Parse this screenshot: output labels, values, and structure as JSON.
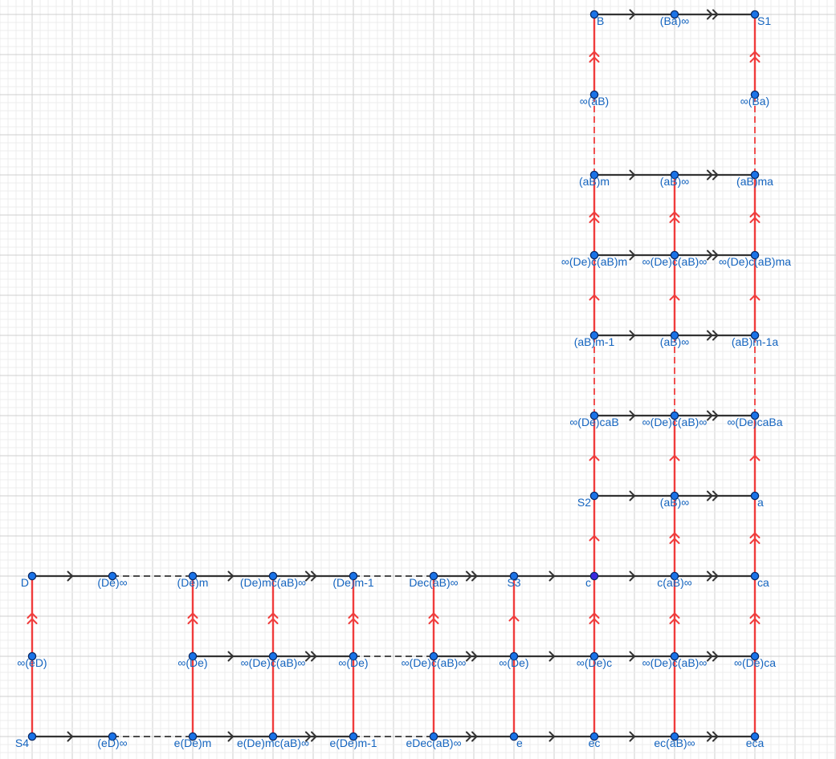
{
  "colors": {
    "background": "#ffffff",
    "grid_minor": "#ececec",
    "grid_major": "#cfcfcf",
    "edge_horizontal": "#333333",
    "edge_vertical": "#f03c3c",
    "point_fill": "#1a73e8",
    "point_stroke": "#0a2a66",
    "point_special_fill": "#3a2be0",
    "label": "#1565c0"
  },
  "points": [
    {
      "id": "B",
      "label": "B",
      "x": 14,
      "y": 18,
      "anchor": "start"
    },
    {
      "id": "Ba_inf",
      "label": "(Ba)∞",
      "x": 16,
      "y": 18,
      "anchor": "middle"
    },
    {
      "id": "S1",
      "label": "S1",
      "x": 18,
      "y": 18,
      "anchor": "start"
    },
    {
      "id": "inf_aB",
      "label": "∞(aB)",
      "x": 14,
      "y": 16,
      "anchor": "middle"
    },
    {
      "id": "inf_Ba",
      "label": "∞(Ba)",
      "x": 18,
      "y": 16,
      "anchor": "middle"
    },
    {
      "id": "aBm",
      "label": "(aB)m",
      "x": 14,
      "y": 14,
      "anchor": "middle"
    },
    {
      "id": "aBinf_1",
      "label": "(aB)∞",
      "x": 16,
      "y": 14,
      "anchor": "middle"
    },
    {
      "id": "aBma",
      "label": "(aB)ma",
      "x": 18,
      "y": 14,
      "anchor": "middle"
    },
    {
      "id": "r12a",
      "label": "∞(De)c(aB)m",
      "x": 14,
      "y": 12,
      "anchor": "middle"
    },
    {
      "id": "r12b",
      "label": "∞(De)c(aB)∞",
      "x": 16,
      "y": 12,
      "anchor": "middle"
    },
    {
      "id": "r12c",
      "label": "∞(De)c(aB)ma",
      "x": 18,
      "y": 12,
      "anchor": "middle"
    },
    {
      "id": "aBm1",
      "label": "(aB)m-1",
      "x": 14,
      "y": 10,
      "anchor": "middle"
    },
    {
      "id": "aBinf_2",
      "label": "(aB)∞",
      "x": 16,
      "y": 10,
      "anchor": "middle"
    },
    {
      "id": "aBm1a",
      "label": "(aB)m-1a",
      "x": 18,
      "y": 10,
      "anchor": "middle"
    },
    {
      "id": "r8a",
      "label": "∞(De)caB",
      "x": 14,
      "y": 8,
      "anchor": "middle"
    },
    {
      "id": "r8b",
      "label": "∞(De)c(aB)∞",
      "x": 16,
      "y": 8,
      "anchor": "middle"
    },
    {
      "id": "r8c",
      "label": "∞(De)caBa",
      "x": 18,
      "y": 8,
      "anchor": "middle"
    },
    {
      "id": "S2",
      "label": "S2",
      "x": 14,
      "y": 6,
      "anchor": "end"
    },
    {
      "id": "aBinf_3",
      "label": "(aB)∞",
      "x": 16,
      "y": 6,
      "anchor": "middle"
    },
    {
      "id": "a",
      "label": "a",
      "x": 18,
      "y": 6,
      "anchor": "start"
    },
    {
      "id": "D",
      "label": "D",
      "x": 0,
      "y": 4,
      "anchor": "end"
    },
    {
      "id": "De_inf",
      "label": "(De)∞",
      "x": 2,
      "y": 4,
      "anchor": "middle"
    },
    {
      "id": "Dem",
      "label": "(De)m",
      "x": 4,
      "y": 4,
      "anchor": "middle"
    },
    {
      "id": "Demc",
      "label": "(De)mc(aB)∞",
      "x": 6,
      "y": 4,
      "anchor": "middle"
    },
    {
      "id": "Dem1",
      "label": "(De)m-1",
      "x": 8,
      "y": 4,
      "anchor": "middle"
    },
    {
      "id": "Dec",
      "label": "Dec(aB)∞",
      "x": 10,
      "y": 4,
      "anchor": "middle"
    },
    {
      "id": "S3",
      "label": "S3",
      "x": 12,
      "y": 4,
      "anchor": "middle"
    },
    {
      "id": "c",
      "label": "c",
      "x": 14,
      "y": 4,
      "anchor": "end",
      "special": true
    },
    {
      "id": "caBinf",
      "label": "c(aB)∞",
      "x": 16,
      "y": 4,
      "anchor": "middle"
    },
    {
      "id": "ca",
      "label": "ca",
      "x": 18,
      "y": 4,
      "anchor": "start"
    },
    {
      "id": "inf_eD",
      "label": "∞(eD)",
      "x": 0,
      "y": 2,
      "anchor": "middle"
    },
    {
      "id": "inf_De_1",
      "label": "∞(De)",
      "x": 4,
      "y": 2,
      "anchor": "middle"
    },
    {
      "id": "r2a",
      "label": "∞(De)c(aB)∞",
      "x": 6,
      "y": 2,
      "anchor": "middle"
    },
    {
      "id": "inf_De_2",
      "label": "∞(De)",
      "x": 8,
      "y": 2,
      "anchor": "middle"
    },
    {
      "id": "r2b",
      "label": "∞(De)c(aB)∞",
      "x": 10,
      "y": 2,
      "anchor": "middle"
    },
    {
      "id": "inf_De_3",
      "label": "∞(De)",
      "x": 12,
      "y": 2,
      "anchor": "middle"
    },
    {
      "id": "inf_Dec",
      "label": "∞(De)c",
      "x": 14,
      "y": 2,
      "anchor": "middle"
    },
    {
      "id": "r2c",
      "label": "∞(De)c(aB)∞",
      "x": 16,
      "y": 2,
      "anchor": "middle"
    },
    {
      "id": "inf_Deca",
      "label": "∞(De)ca",
      "x": 18,
      "y": 2,
      "anchor": "middle"
    },
    {
      "id": "S4",
      "label": "S4",
      "x": 0,
      "y": 0,
      "anchor": "end"
    },
    {
      "id": "eD_inf",
      "label": "(eD)∞",
      "x": 2,
      "y": 0,
      "anchor": "middle"
    },
    {
      "id": "eDem",
      "label": "e(De)m",
      "x": 4,
      "y": 0,
      "anchor": "middle"
    },
    {
      "id": "eDemc",
      "label": "e(De)mc(aB)∞",
      "x": 6,
      "y": 0,
      "anchor": "middle"
    },
    {
      "id": "eDem1",
      "label": "e(De)m-1",
      "x": 8,
      "y": 0,
      "anchor": "middle"
    },
    {
      "id": "eDec",
      "label": "eDec(aB)∞",
      "x": 10,
      "y": 0,
      "anchor": "middle"
    },
    {
      "id": "e",
      "label": "e",
      "x": 12,
      "y": 0,
      "anchor": "start"
    },
    {
      "id": "ec",
      "label": "ec",
      "x": 14,
      "y": 0,
      "anchor": "middle"
    },
    {
      "id": "ecaBinf",
      "label": "ec(aB)∞",
      "x": 16,
      "y": 0,
      "anchor": "middle"
    },
    {
      "id": "eca",
      "label": "eca",
      "x": 18,
      "y": 0,
      "anchor": "middle"
    }
  ],
  "edges": [
    {
      "from": "B",
      "to": "Ba_inf",
      "arrows": 1
    },
    {
      "from": "Ba_inf",
      "to": "S1",
      "arrows": 2
    },
    {
      "from": "aBm",
      "to": "aBinf_1",
      "arrows": 1
    },
    {
      "from": "aBinf_1",
      "to": "aBma",
      "arrows": 2
    },
    {
      "from": "r12a",
      "to": "r12b",
      "arrows": 1
    },
    {
      "from": "r12b",
      "to": "r12c",
      "arrows": 2
    },
    {
      "from": "aBm1",
      "to": "aBinf_2",
      "arrows": 1
    },
    {
      "from": "aBinf_2",
      "to": "aBm1a",
      "arrows": 2
    },
    {
      "from": "r8a",
      "to": "r8b",
      "arrows": 1
    },
    {
      "from": "r8b",
      "to": "r8c",
      "arrows": 2
    },
    {
      "from": "S2",
      "to": "aBinf_3",
      "arrows": 1
    },
    {
      "from": "aBinf_3",
      "to": "a",
      "arrows": 2
    },
    {
      "from": "D",
      "to": "De_inf",
      "arrows": 1
    },
    {
      "from": "De_inf",
      "to": "Dem",
      "dashed": true
    },
    {
      "from": "Dem",
      "to": "Demc",
      "arrows": 1
    },
    {
      "from": "Demc",
      "to": "Dem1",
      "arrows": 2
    },
    {
      "from": "Dem1",
      "to": "Dec",
      "dashed": true
    },
    {
      "from": "Dec",
      "to": "S3",
      "arrows": 2
    },
    {
      "from": "S3",
      "to": "c",
      "arrows": 1
    },
    {
      "from": "c",
      "to": "caBinf",
      "arrows": 1
    },
    {
      "from": "caBinf",
      "to": "ca",
      "arrows": 2
    },
    {
      "from": "inf_De_1",
      "to": "r2a",
      "arrows": 1
    },
    {
      "from": "r2a",
      "to": "inf_De_2",
      "arrows": 2
    },
    {
      "from": "inf_De_2",
      "to": "r2b",
      "dashed": true
    },
    {
      "from": "r2b",
      "to": "inf_De_3",
      "arrows": 2
    },
    {
      "from": "inf_De_3",
      "to": "inf_Dec",
      "arrows": 1
    },
    {
      "from": "inf_Dec",
      "to": "r2c",
      "arrows": 1
    },
    {
      "from": "r2c",
      "to": "inf_Deca",
      "arrows": 2
    },
    {
      "from": "S4",
      "to": "eD_inf",
      "arrows": 1
    },
    {
      "from": "eD_inf",
      "to": "eDem",
      "dashed": true
    },
    {
      "from": "eDem",
      "to": "eDemc",
      "arrows": 1
    },
    {
      "from": "eDemc",
      "to": "eDem1",
      "arrows": 2
    },
    {
      "from": "eDem1",
      "to": "eDec",
      "dashed": true
    },
    {
      "from": "eDec",
      "to": "e",
      "arrows": 2
    },
    {
      "from": "e",
      "to": "ec",
      "arrows": 1
    },
    {
      "from": "ec",
      "to": "ecaBinf",
      "arrows": 1
    },
    {
      "from": "ecaBinf",
      "to": "eca",
      "arrows": 2
    },
    {
      "from": "S4",
      "to": "inf_eD",
      "arrows": 0,
      "vertical": true
    },
    {
      "from": "inf_eD",
      "to": "D",
      "arrows": 2,
      "vertical": true
    },
    {
      "from": "eDem",
      "to": "inf_De_1",
      "arrows": 0,
      "vertical": true
    },
    {
      "from": "inf_De_1",
      "to": "Dem",
      "arrows": 2,
      "vertical": true
    },
    {
      "from": "eDemc",
      "to": "r2a",
      "arrows": 0,
      "vertical": true
    },
    {
      "from": "r2a",
      "to": "Demc",
      "arrows": 2,
      "vertical": true
    },
    {
      "from": "eDem1",
      "to": "inf_De_2",
      "arrows": 0,
      "vertical": true
    },
    {
      "from": "inf_De_2",
      "to": "Dem1",
      "arrows": 2,
      "vertical": true
    },
    {
      "from": "eDec",
      "to": "r2b",
      "arrows": 0,
      "vertical": true
    },
    {
      "from": "r2b",
      "to": "Dec",
      "arrows": 2,
      "vertical": true
    },
    {
      "from": "e",
      "to": "inf_De_3",
      "arrows": 0,
      "vertical": true
    },
    {
      "from": "inf_De_3",
      "to": "S3",
      "arrows": 1,
      "vertical": true
    },
    {
      "from": "ec",
      "to": "inf_Dec",
      "arrows": 0,
      "vertical": true
    },
    {
      "from": "inf_Dec",
      "to": "c",
      "arrows": 2,
      "vertical": true
    },
    {
      "from": "c",
      "to": "S2",
      "arrows": 1,
      "vertical": true
    },
    {
      "from": "S2",
      "to": "r8a",
      "arrows": 1,
      "vertical": true
    },
    {
      "from": "r8a",
      "to": "aBm1",
      "dashed": true,
      "vertical": true
    },
    {
      "from": "aBm1",
      "to": "r12a",
      "arrows": 1,
      "vertical": true
    },
    {
      "from": "r12a",
      "to": "aBm",
      "arrows": 2,
      "vertical": true
    },
    {
      "from": "aBm",
      "to": "inf_aB",
      "dashed": true,
      "vertical": true
    },
    {
      "from": "inf_aB",
      "to": "B",
      "arrows": 2,
      "vertical": true
    },
    {
      "from": "ecaBinf",
      "to": "r2c",
      "arrows": 0,
      "vertical": true
    },
    {
      "from": "r2c",
      "to": "caBinf",
      "arrows": 2,
      "vertical": true
    },
    {
      "from": "caBinf",
      "to": "aBinf_3",
      "arrows": 2,
      "vertical": true
    },
    {
      "from": "aBinf_3",
      "to": "r8b",
      "arrows": 1,
      "vertical": true
    },
    {
      "from": "r8b",
      "to": "aBinf_2",
      "dashed": true,
      "vertical": true
    },
    {
      "from": "aBinf_2",
      "to": "r12b",
      "arrows": 1,
      "vertical": true
    },
    {
      "from": "r12b",
      "to": "aBinf_1",
      "arrows": 2,
      "vertical": true
    },
    {
      "from": "eca",
      "to": "inf_Deca",
      "arrows": 0,
      "vertical": true
    },
    {
      "from": "inf_Deca",
      "to": "ca",
      "arrows": 2,
      "vertical": true
    },
    {
      "from": "ca",
      "to": "a",
      "arrows": 2,
      "vertical": true
    },
    {
      "from": "a",
      "to": "r8c",
      "arrows": 1,
      "vertical": true
    },
    {
      "from": "r8c",
      "to": "aBm1a",
      "dashed": true,
      "vertical": true
    },
    {
      "from": "aBm1a",
      "to": "r12c",
      "arrows": 1,
      "vertical": true
    },
    {
      "from": "r12c",
      "to": "aBma",
      "arrows": 2,
      "vertical": true
    },
    {
      "from": "aBma",
      "to": "inf_Ba",
      "dashed": true,
      "vertical": true
    },
    {
      "from": "inf_Ba",
      "to": "S1",
      "arrows": 2,
      "vertical": true
    }
  ]
}
